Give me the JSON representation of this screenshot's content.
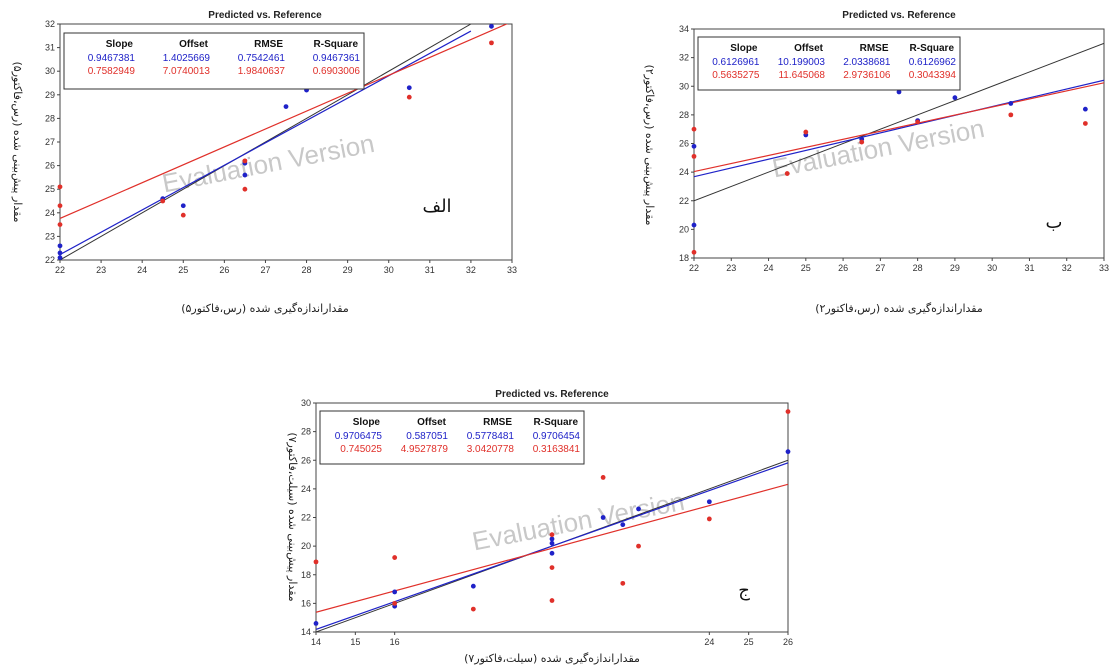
{
  "colors": {
    "calibration": "#1f22c8",
    "validation": "#e0302a",
    "target_line": "#333333",
    "frame": "#444444"
  },
  "chart_data": [
    {
      "type": "scatter",
      "panel_tag": "الف",
      "title": "Predicted vs. Reference",
      "watermark": "Evaluation Version",
      "xlabel": "مقداراندازه‌گیری شده (رس،فاکتور۵)",
      "ylabel": "مقدار پیش‌بینی شده (رس،فاکتور۵)",
      "xlim": [
        22,
        33
      ],
      "ylim": [
        22,
        32
      ],
      "xticks": [
        22,
        23,
        24,
        25,
        26,
        27,
        28,
        29,
        30,
        31,
        32,
        33
      ],
      "yticks": [
        22,
        23,
        24,
        25,
        26,
        27,
        28,
        29,
        30,
        31,
        32
      ],
      "stats_header": [
        "Slope",
        "Offset",
        "RMSE",
        "R-Square"
      ],
      "stats": [
        [
          "0.9467381",
          "1.4025669",
          "0.7542461",
          "0.9467361"
        ],
        [
          "0.7582949",
          "7.0740013",
          "1.9840637",
          "0.6903006"
        ]
      ],
      "series": [
        {
          "color": "#1f22c8",
          "points": [
            [
              22,
              22.1
            ],
            [
              22,
              22.3
            ],
            [
              22,
              22.6
            ],
            [
              24.5,
              24.6
            ],
            [
              25,
              24.3
            ],
            [
              26.5,
              25.6
            ],
            [
              26.5,
              26.1
            ],
            [
              27.5,
              28.5
            ],
            [
              28,
              29.2
            ],
            [
              29,
              29.9
            ],
            [
              30.5,
              29.3
            ],
            [
              32.5,
              31.9
            ]
          ],
          "line": [
            [
              22,
              22.23
            ],
            [
              32,
              31.7
            ]
          ]
        },
        {
          "color": "#e0302a",
          "points": [
            [
              22,
              23.5
            ],
            [
              22,
              24.3
            ],
            [
              22,
              25.1
            ],
            [
              24.5,
              24.5
            ],
            [
              25,
              23.9
            ],
            [
              26.5,
              25.0
            ],
            [
              26.5,
              26.2
            ],
            [
              28,
              30.4
            ],
            [
              29,
              30.8
            ],
            [
              30.5,
              28.9
            ],
            [
              32.5,
              31.2
            ]
          ],
          "line": [
            [
              22,
              23.76
            ],
            [
              33,
              32.1
            ]
          ]
        }
      ],
      "target_line": [
        [
          22,
          22
        ],
        [
          32,
          32
        ]
      ]
    },
    {
      "type": "scatter",
      "panel_tag": "ب",
      "title": "Predicted vs. Reference",
      "watermark": "Evaluation Version",
      "xlabel": "مقداراندازه‌گیری شده (رس،فاکتور۲)",
      "ylabel": "مقدار پیش‌بینی شده (رس،فاکتور۲)",
      "xlim": [
        22,
        33
      ],
      "ylim": [
        18,
        34
      ],
      "xticks": [
        22,
        23,
        24,
        25,
        26,
        27,
        28,
        29,
        30,
        31,
        32,
        33
      ],
      "yticks": [
        18,
        20,
        22,
        24,
        26,
        28,
        30,
        32,
        34
      ],
      "stats_header": [
        "Slope",
        "Offset",
        "RMSE",
        "R-Square"
      ],
      "stats": [
        [
          "0.6126961",
          "10.199003",
          "2.0338681",
          "0.6126962"
        ],
        [
          "0.5635275",
          "11.645068",
          "2.9736106",
          "0.3043394"
        ]
      ],
      "series": [
        {
          "color": "#1f22c8",
          "points": [
            [
              22,
              20.3
            ],
            [
              22,
              25.8
            ],
            [
              25,
              26.6
            ],
            [
              26.5,
              26.3
            ],
            [
              27.5,
              29.6
            ],
            [
              28,
              27.6
            ],
            [
              29,
              29.2
            ],
            [
              30.5,
              28.8
            ],
            [
              32.5,
              28.4
            ]
          ],
          "line": [
            [
              22,
              23.68
            ],
            [
              33,
              30.42
            ]
          ]
        },
        {
          "color": "#e0302a",
          "points": [
            [
              22,
              18.4
            ],
            [
              22,
              25.1
            ],
            [
              22,
              27.0
            ],
            [
              24.5,
              23.9
            ],
            [
              25,
              26.8
            ],
            [
              26.5,
              26.1
            ],
            [
              28,
              27.5
            ],
            [
              29,
              30.0
            ],
            [
              30.5,
              28.0
            ],
            [
              32.5,
              27.4
            ]
          ],
          "line": [
            [
              22,
              24.04
            ],
            [
              33,
              30.24
            ]
          ]
        }
      ],
      "target_line": [
        [
          22,
          22
        ],
        [
          33,
          33
        ]
      ]
    },
    {
      "type": "scatter",
      "panel_tag": "ج",
      "title": "Predicted vs. Reference",
      "watermark": "Evaluation Version",
      "xlabel": "مقداراندازه‌گیری شده (سیلت،فاکتور۷)",
      "ylabel": "مقدار پیش‌بینی شده (سیلت،فاکتور۷)",
      "xlim": [
        14,
        26
      ],
      "ylim": [
        14,
        30
      ],
      "xticks": [
        14,
        15,
        16,
        24,
        25,
        26
      ],
      "yticks": [
        14,
        16,
        18,
        20,
        22,
        24,
        26,
        28,
        30
      ],
      "stats_header": [
        "Slope",
        "Offset",
        "RMSE",
        "R-Square"
      ],
      "stats": [
        [
          "0.9706475",
          "0.587051",
          "0.5778481",
          "0.9706454"
        ],
        [
          "0.745025",
          "4.9527879",
          "3.0420778",
          "0.3163841"
        ]
      ],
      "series": [
        {
          "color": "#1f22c8",
          "points": [
            [
              14,
              14.6
            ],
            [
              16,
              16.8
            ],
            [
              16,
              15.8
            ],
            [
              18,
              17.2
            ],
            [
              20,
              19.5
            ],
            [
              20,
              20.2
            ],
            [
              20,
              20.5
            ],
            [
              21.3,
              22.0
            ],
            [
              21.8,
              21.5
            ],
            [
              22.2,
              22.6
            ],
            [
              24,
              23.1
            ],
            [
              26,
              26.6
            ]
          ],
          "line": [
            [
              14,
              14.18
            ],
            [
              26,
              25.82
            ]
          ]
        },
        {
          "color": "#e0302a",
          "points": [
            [
              14,
              18.9
            ],
            [
              16,
              19.2
            ],
            [
              16,
              16.0
            ],
            [
              18,
              15.6
            ],
            [
              20,
              16.2
            ],
            [
              20,
              18.5
            ],
            [
              20,
              20.8
            ],
            [
              21.3,
              24.8
            ],
            [
              21.8,
              17.4
            ],
            [
              22.2,
              20.0
            ],
            [
              24,
              21.9
            ],
            [
              26,
              29.4
            ]
          ],
          "line": [
            [
              14,
              15.38
            ],
            [
              26,
              24.32
            ]
          ]
        }
      ],
      "target_line": [
        [
          14,
          14
        ],
        [
          26,
          26
        ]
      ]
    }
  ]
}
